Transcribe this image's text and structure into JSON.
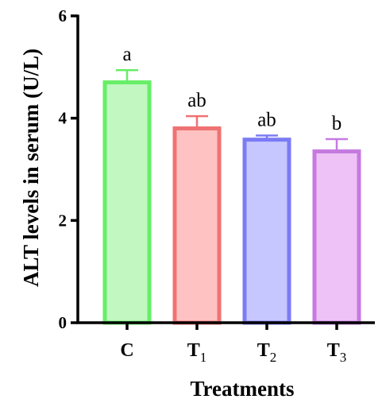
{
  "chart_data": {
    "type": "bar",
    "title": "",
    "xlabel": "Treatments",
    "ylabel": "ALT levels in serum (U/L)",
    "ylim": [
      0,
      6
    ],
    "yticks": [
      "0",
      "2",
      "4",
      "6"
    ],
    "grid": false,
    "categories": [
      {
        "main": "C",
        "sub": ""
      },
      {
        "main": "T",
        "sub": "1"
      },
      {
        "main": "T",
        "sub": "2"
      },
      {
        "main": "T",
        "sub": "3"
      }
    ],
    "values": [
      4.7,
      3.8,
      3.58,
      3.35
    ],
    "errors": [
      0.24,
      0.24,
      0.08,
      0.24
    ],
    "significance_labels": [
      "a",
      "ab",
      "ab",
      "b"
    ],
    "colors": [
      {
        "fill": "#c2f7c2",
        "stroke": "#66ee66"
      },
      {
        "fill": "#ffc2c2",
        "stroke": "#ef7272"
      },
      {
        "fill": "#c7c7ff",
        "stroke": "#7b7bf5"
      },
      {
        "fill": "#eec2f6",
        "stroke": "#c67ae0"
      }
    ]
  }
}
